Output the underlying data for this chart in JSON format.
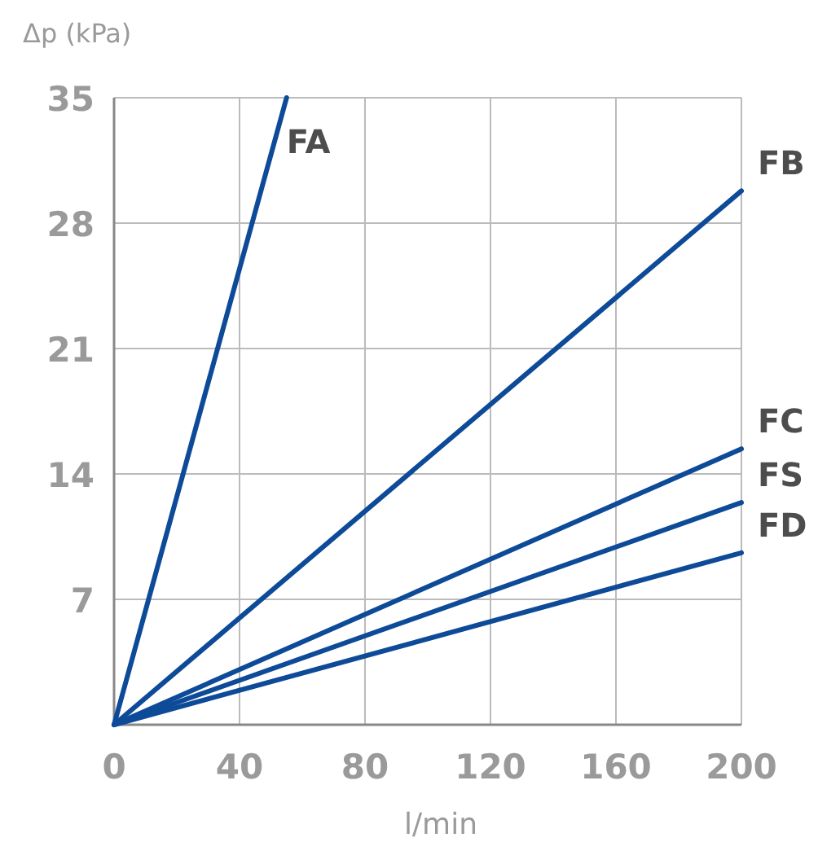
{
  "chart_data": {
    "type": "line",
    "xlabel": "l/min",
    "ylabel": "Δp (kPa)",
    "xlim": [
      0,
      200
    ],
    "ylim": [
      0,
      35
    ],
    "xticks": [
      0,
      40,
      80,
      120,
      160,
      200
    ],
    "yticks": [
      7,
      14,
      21,
      28,
      35
    ],
    "grid": true,
    "series": [
      {
        "name": "FA",
        "color": "#0d4a98",
        "x": [
          0,
          55
        ],
        "values": [
          0,
          35
        ]
      },
      {
        "name": "FB",
        "color": "#0d4a98",
        "x": [
          0,
          200
        ],
        "values": [
          0,
          29.8
        ]
      },
      {
        "name": "FC",
        "color": "#0d4a98",
        "x": [
          0,
          200
        ],
        "values": [
          0,
          15.4
        ]
      },
      {
        "name": "FS",
        "color": "#0d4a98",
        "x": [
          0,
          200
        ],
        "values": [
          0,
          12.4
        ]
      },
      {
        "name": "FD",
        "color": "#0d4a98",
        "x": [
          0,
          200
        ],
        "values": [
          0,
          9.6
        ]
      }
    ]
  }
}
